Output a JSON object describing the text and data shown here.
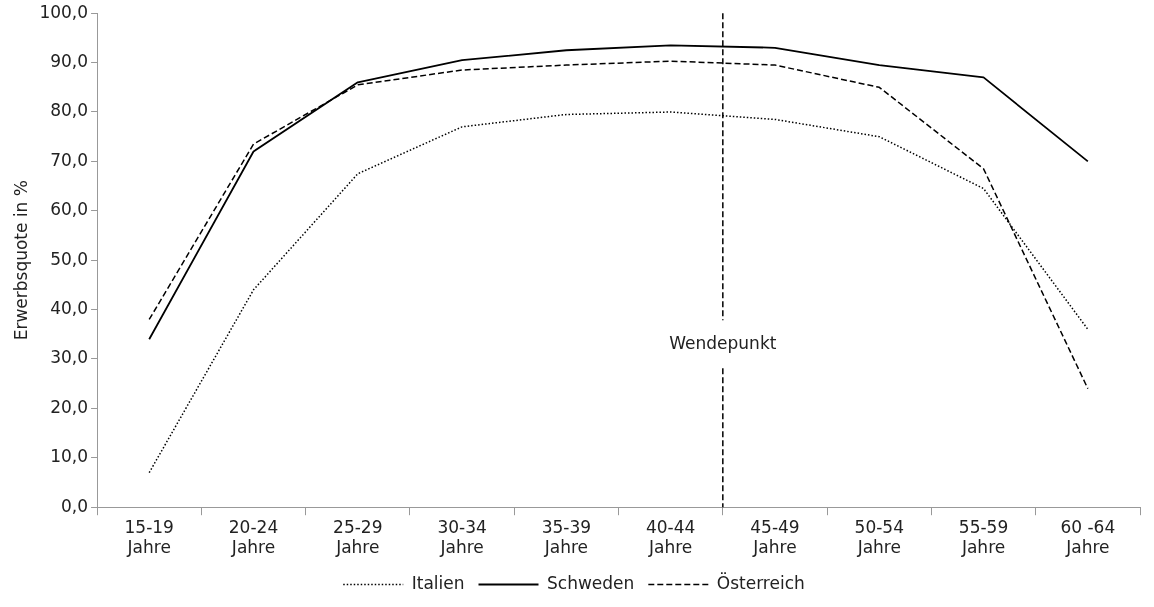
{
  "chart_data": {
    "type": "line",
    "ylabel": "Erwerbsquote in %",
    "categories": [
      "15-19\nJahre",
      "20-24\nJahre",
      "25-29\nJahre",
      "30-34\nJahre",
      "35-39\nJahre",
      "40-44\nJahre",
      "45-49\nJahre",
      "50-54\nJahre",
      "55-59\nJahre",
      "60 -64\nJahre"
    ],
    "series": [
      {
        "name": "Italien",
        "color": "#000000",
        "line_style": "dotted",
        "values": [
          7,
          44,
          67.5,
          77,
          79.5,
          80,
          78.5,
          75,
          64.5,
          36
        ]
      },
      {
        "name": "Schweden",
        "color": "#000000",
        "line_style": "solid",
        "values": [
          34,
          72,
          86,
          90.5,
          92.5,
          93.5,
          93,
          89.5,
          87,
          70
        ]
      },
      {
        "name": "Österreich",
        "color": "#000000",
        "line_style": "dashed",
        "values": [
          38,
          73.5,
          85.5,
          88.5,
          89.5,
          90.3,
          89.5,
          85,
          68.5,
          24
        ]
      }
    ],
    "ylim": [
      0,
      100
    ],
    "yticks": [
      {
        "value": 0,
        "label": "0,0"
      },
      {
        "value": 10,
        "label": "10,0"
      },
      {
        "value": 20,
        "label": "20,0"
      },
      {
        "value": 30,
        "label": "30,0"
      },
      {
        "value": 40,
        "label": "40,0"
      },
      {
        "value": 50,
        "label": "50,0"
      },
      {
        "value": 60,
        "label": "60,0"
      },
      {
        "value": 70,
        "label": "70,0"
      },
      {
        "value": 80,
        "label": "80,0"
      },
      {
        "value": 90,
        "label": "90,0"
      },
      {
        "value": 100,
        "label": "100,0"
      }
    ],
    "annotations": [
      "Wendepunkt"
    ],
    "grid": false,
    "legend": "bottom",
    "marker": "none"
  }
}
